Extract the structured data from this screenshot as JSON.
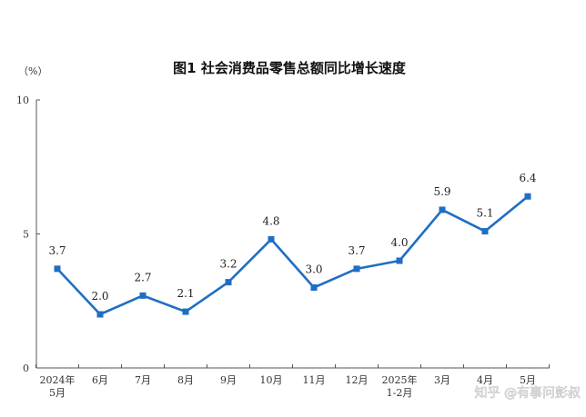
{
  "chart_data": {
    "type": "line",
    "title": "图1  社会消费品零售总额同比增长速度",
    "unit_label": "（%）",
    "ylim": [
      0,
      10
    ],
    "yticks": [
      "0",
      "5",
      "10"
    ],
    "categories": [
      [
        "2024年",
        "5月"
      ],
      [
        "6月"
      ],
      [
        "7月"
      ],
      [
        "8月"
      ],
      [
        "9月"
      ],
      [
        "10月"
      ],
      [
        "11月"
      ],
      [
        "12月"
      ],
      [
        "2025年",
        "1-2月"
      ],
      [
        "3月"
      ],
      [
        "4月"
      ],
      [
        "5月"
      ]
    ],
    "values": [
      3.7,
      2.0,
      2.7,
      2.1,
      3.2,
      4.8,
      3.0,
      3.7,
      4.0,
      5.9,
      5.1,
      6.4
    ],
    "data_labels": [
      "3.7",
      "2.0",
      "2.7",
      "2.1",
      "3.2",
      "4.8",
      "3.0",
      "3.7",
      "4.0",
      "5.9",
      "5.1",
      "6.4"
    ],
    "line_color": "#1f6ec3",
    "grid": false
  },
  "watermark": "知乎 @有事问彭叔"
}
